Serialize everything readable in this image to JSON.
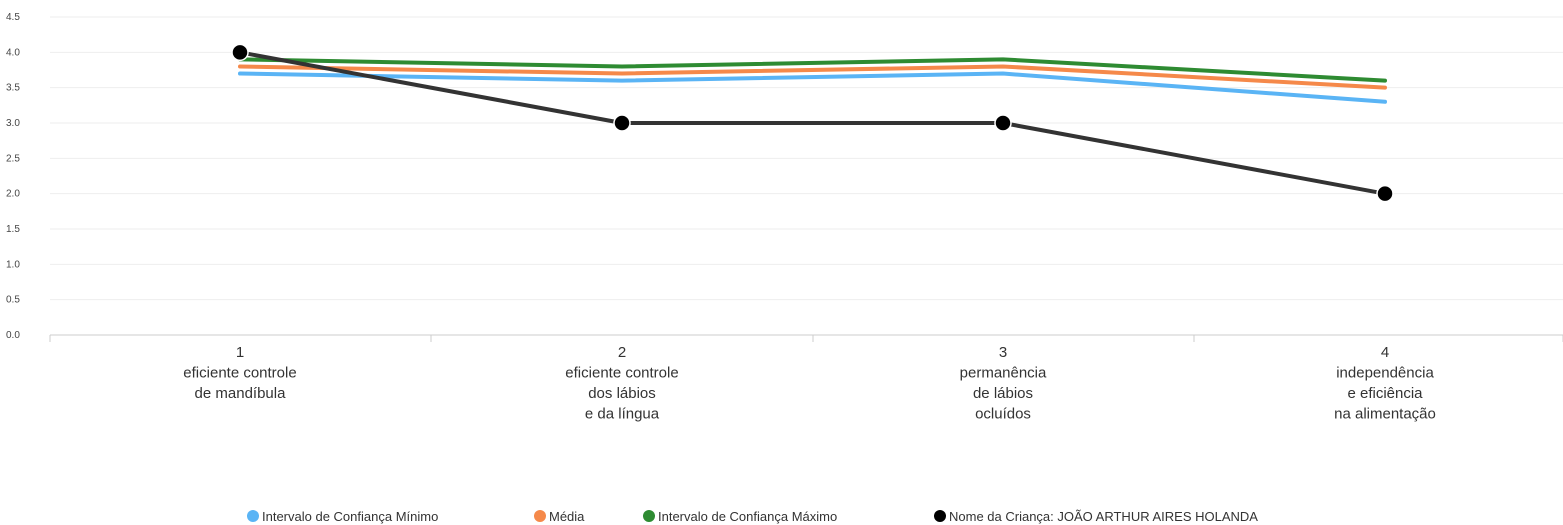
{
  "chart_data": {
    "type": "line",
    "title": "",
    "xlabel": "",
    "ylabel": "",
    "ylim": [
      0,
      4.5
    ],
    "yticks": [
      "0.0",
      "0.5",
      "1.0",
      "1.5",
      "2.0",
      "2.5",
      "3.0",
      "3.5",
      "4.0",
      "4.5"
    ],
    "grid": true,
    "legend_position": "bottom",
    "categories": [
      [
        "1",
        "eficiente controle",
        "de mandíbula"
      ],
      [
        "2",
        "eficiente controle",
        "dos lábios",
        "e da língua"
      ],
      [
        "3",
        "permanência",
        "de lábios",
        "ocluídos"
      ],
      [
        "4",
        "independência",
        "e eficiência",
        "na alimentação"
      ]
    ],
    "series": [
      {
        "name": "Intervalo de Confiança Mínimo",
        "color": "#5ab4f5",
        "values": [
          3.7,
          3.6,
          3.7,
          3.3
        ],
        "markers": false
      },
      {
        "name": "Média",
        "color": "#f5894a",
        "values": [
          3.8,
          3.7,
          3.8,
          3.5
        ],
        "markers": false
      },
      {
        "name": "Intervalo de Confiança Máximo",
        "color": "#2e8b32",
        "values": [
          3.9,
          3.8,
          3.9,
          3.6
        ],
        "markers": false
      },
      {
        "name": "Nome da Criança: JOÃO ARTHUR AIRES HOLANDA",
        "color": "#333333",
        "values": [
          4.0,
          3.0,
          3.0,
          2.0
        ],
        "markers": true,
        "marker_color": "#000000"
      }
    ]
  }
}
